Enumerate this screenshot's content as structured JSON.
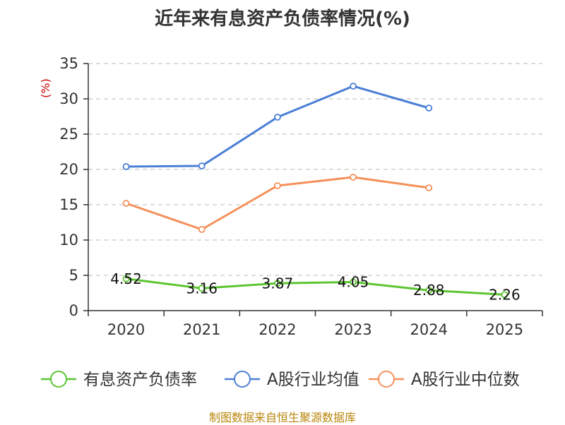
{
  "title": "近年来有息资产负债率情况(%)",
  "source": "制图数据来自恒生聚源数据库",
  "colors": {
    "unit": "#cc0000",
    "source": "#b8860b",
    "axis": "#333333",
    "grid": "#c8c8c8"
  },
  "chart_data": {
    "type": "line",
    "title": "近年来有息资产负债率情况(%)",
    "ylabel": "(%)",
    "xlabel": "",
    "categories": [
      "2020",
      "2021",
      "2022",
      "2023",
      "2024",
      "2025"
    ],
    "ylim": [
      0,
      35
    ],
    "yticks": [
      0,
      5,
      10,
      15,
      20,
      25,
      30,
      35
    ],
    "grid": "horizontal-dashed",
    "legend_position": "bottom",
    "series": [
      {
        "name": "有息资产负债率",
        "color": "#5cc531",
        "values": [
          4.52,
          3.16,
          3.87,
          4.05,
          2.88,
          2.26
        ],
        "labels": [
          "4.52",
          "3.16",
          "3.87",
          "4.05",
          "2.88",
          "2.26"
        ]
      },
      {
        "name": "A股行业均值",
        "color": "#4a7fd6",
        "values": [
          20.4,
          20.5,
          27.4,
          31.8,
          28.7,
          null
        ]
      },
      {
        "name": "A股行业中位数",
        "color": "#f5905a",
        "values": [
          15.2,
          11.5,
          17.7,
          18.9,
          17.4,
          null
        ]
      }
    ]
  }
}
